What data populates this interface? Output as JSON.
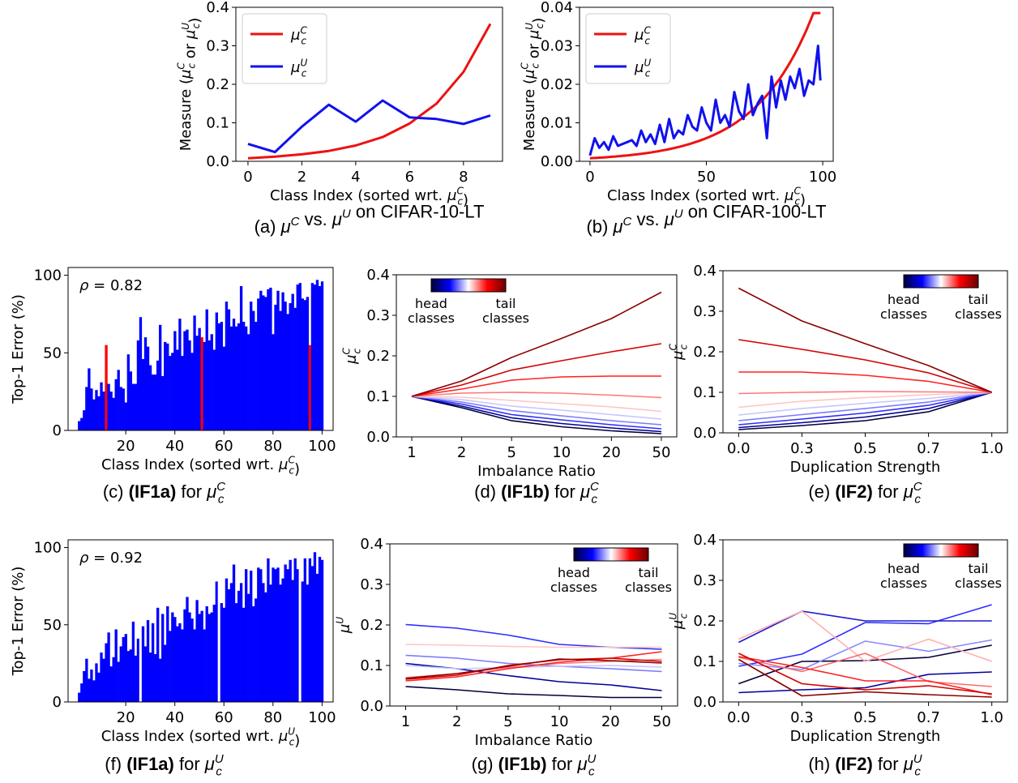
{
  "colors": {
    "red": "#ee1111",
    "blue": "#1111ee",
    "bar_blue": "#0000ff",
    "bar_red": "#ff0000"
  },
  "chart_data": [
    {
      "id": "a",
      "type": "line",
      "caption": {
        "prefix": "(a) ",
        "bold": "",
        "suffix": "μ^C vs. μ^U on CIFAR-10-LT"
      },
      "xlabel": "Class Index (sorted wrt. μ_c^C)",
      "ylabel": "Measure (μ_c^C or μ_c^U)",
      "xlim": [
        -0.45,
        9.45
      ],
      "ylim": [
        0,
        0.4
      ],
      "xticks": [
        0,
        2,
        4,
        6,
        8
      ],
      "xticklabels": [
        "0",
        "2",
        "4",
        "6",
        "8"
      ],
      "yticks": [
        0,
        0.1,
        0.2,
        0.3,
        0.4
      ],
      "yticklabels": [
        "0.0",
        "0.1",
        "0.2",
        "0.3",
        "0.4"
      ],
      "legend": {
        "loc": "upper-left",
        "entries": [
          "μ_c^C",
          "μ_c^U"
        ]
      },
      "series": [
        {
          "name": "μ_c^C",
          "color": "#ee1111",
          "x": [
            0,
            1,
            2,
            3,
            4,
            5,
            6,
            7,
            8,
            9
          ],
          "y": [
            0.008,
            0.012,
            0.018,
            0.027,
            0.041,
            0.063,
            0.098,
            0.15,
            0.232,
            0.357
          ]
        },
        {
          "name": "μ_c^U",
          "color": "#1111ee",
          "x": [
            0,
            1,
            2,
            3,
            4,
            5,
            6,
            7,
            8,
            9
          ],
          "y": [
            0.045,
            0.024,
            0.09,
            0.147,
            0.103,
            0.158,
            0.114,
            0.11,
            0.097,
            0.119
          ]
        }
      ]
    },
    {
      "id": "b",
      "type": "line",
      "caption": {
        "prefix": "(b) ",
        "bold": "",
        "suffix": "μ^C vs. μ^U on CIFAR-100-LT"
      },
      "xlabel": "Class Index (sorted wrt. μ_c^C)",
      "ylabel": "Measure (μ_c^C or μ_c^U)",
      "xlim": [
        -4.5,
        104.5
      ],
      "ylim": [
        0,
        0.04
      ],
      "xticks": [
        0,
        50,
        100
      ],
      "xticklabels": [
        "0",
        "50",
        "100"
      ],
      "yticks": [
        0,
        0.01,
        0.02,
        0.03,
        0.04
      ],
      "yticklabels": [
        "0.00",
        "0.01",
        "0.02",
        "0.03",
        "0.04"
      ],
      "legend": {
        "loc": "upper-left",
        "entries": [
          "μ_c^C",
          "μ_c^U"
        ]
      },
      "series": [
        {
          "name": "μ_c^C",
          "color": "#ee1111",
          "gen": "expcurve",
          "n": 100,
          "y0": 0.0008,
          "y1": 0.0385,
          "flat_from": 96
        },
        {
          "name": "μ_c^U",
          "color": "#1111ee",
          "x": [
            0,
            2,
            4,
            6,
            8,
            10,
            12,
            14,
            16,
            18,
            20,
            22,
            24,
            26,
            28,
            30,
            32,
            34,
            36,
            38,
            40,
            42,
            44,
            46,
            48,
            50,
            52,
            54,
            56,
            58,
            60,
            62,
            64,
            66,
            68,
            70,
            72,
            74,
            76,
            78,
            80,
            82,
            84,
            86,
            88,
            90,
            92,
            94,
            96,
            98,
            99
          ],
          "y": [
            0.0015,
            0.006,
            0.0035,
            0.005,
            0.003,
            0.0065,
            0.004,
            0.0045,
            0.005,
            0.0055,
            0.004,
            0.008,
            0.005,
            0.007,
            0.0045,
            0.0095,
            0.005,
            0.011,
            0.006,
            0.008,
            0.007,
            0.012,
            0.009,
            0.008,
            0.014,
            0.01,
            0.008,
            0.016,
            0.01,
            0.012,
            0.009,
            0.018,
            0.013,
            0.011,
            0.02,
            0.012,
            0.015,
            0.017,
            0.006,
            0.022,
            0.014,
            0.021,
            0.016,
            0.022,
            0.019,
            0.024,
            0.017,
            0.021,
            0.02,
            0.03,
            0.021
          ]
        }
      ]
    },
    {
      "id": "c",
      "type": "bar",
      "caption": {
        "prefix": "(c) ",
        "bold": "(IF1a)",
        "suffix": " for μ_c^C"
      },
      "xlabel": "Class Index (sorted wrt. μ_c^C)",
      "ylabel": "Top-1 Error (%)",
      "xlim": [
        -3.5,
        104.5
      ],
      "ylim": [
        0,
        105
      ],
      "xticks": [
        20,
        40,
        60,
        80,
        100
      ],
      "xticklabels": [
        "20",
        "40",
        "60",
        "80",
        "100"
      ],
      "yticks": [
        0,
        50,
        100
      ],
      "yticklabels": [
        "0",
        "50",
        "100"
      ],
      "annotation": "ρ = 0.82",
      "highlight_color": "#ff0000",
      "highlight_indices": [
        11,
        50,
        94
      ],
      "values": [
        6,
        8,
        13,
        28,
        40,
        27,
        20,
        26,
        22,
        31,
        25,
        55,
        30,
        25,
        21,
        33,
        39,
        28,
        27,
        18,
        49,
        38,
        30,
        30,
        58,
        73,
        46,
        60,
        54,
        42,
        36,
        36,
        45,
        68,
        35,
        57,
        56,
        48,
        50,
        64,
        52,
        72,
        48,
        64,
        65,
        58,
        50,
        74,
        61,
        66,
        60,
        57,
        78,
        58,
        62,
        52,
        76,
        69,
        70,
        54,
        83,
        78,
        67,
        72,
        67,
        69,
        93,
        70,
        67,
        62,
        83,
        77,
        70,
        85,
        90,
        87,
        86,
        91,
        92,
        62,
        81,
        90,
        77,
        89,
        83,
        75,
        82,
        88,
        79,
        94,
        95,
        85,
        84,
        86,
        55,
        95,
        94,
        97,
        93,
        96
      ]
    },
    {
      "id": "d",
      "type": "line",
      "caption": {
        "prefix": "(d) ",
        "bold": "(IF1b)",
        "suffix": " for μ_c^C"
      },
      "xlabel": "Imbalance Ratio",
      "ylabel": "μ_c^C",
      "xcats": [
        "1",
        "2",
        "5",
        "10",
        "20",
        "50"
      ],
      "ylim": [
        0,
        0.4
      ],
      "yticks": [
        0,
        0.1,
        0.2,
        0.3,
        0.4
      ],
      "yticklabels": [
        "0.0",
        "0.1",
        "0.2",
        "0.3",
        "0.4"
      ],
      "colorbar": {
        "loc": "top-left",
        "left_label": [
          "head",
          "classes"
        ],
        "right_label": [
          "tail",
          "classes"
        ]
      },
      "series": [
        {
          "color": "#00003a",
          "y": [
            0.1,
            0.072,
            0.04,
            0.025,
            0.015,
            0.008
          ]
        },
        {
          "color": "#00009a",
          "y": [
            0.1,
            0.076,
            0.047,
            0.033,
            0.022,
            0.013
          ]
        },
        {
          "color": "#2e2eff",
          "y": [
            0.1,
            0.081,
            0.055,
            0.042,
            0.03,
            0.02
          ]
        },
        {
          "color": "#7a7aff",
          "y": [
            0.1,
            0.086,
            0.065,
            0.052,
            0.04,
            0.03
          ]
        },
        {
          "color": "#c6c6ff",
          "y": [
            0.1,
            0.092,
            0.076,
            0.066,
            0.055,
            0.044
          ]
        },
        {
          "color": "#ffc4c4",
          "y": [
            0.1,
            0.098,
            0.09,
            0.082,
            0.074,
            0.063
          ]
        },
        {
          "color": "#ff7777",
          "y": [
            0.1,
            0.108,
            0.11,
            0.108,
            0.103,
            0.097
          ]
        },
        {
          "color": "#ff2222",
          "y": [
            0.1,
            0.118,
            0.14,
            0.148,
            0.15,
            0.15
          ]
        },
        {
          "color": "#d40000",
          "y": [
            0.1,
            0.128,
            0.165,
            0.188,
            0.21,
            0.23
          ]
        },
        {
          "color": "#8b0000",
          "y": [
            0.1,
            0.138,
            0.196,
            0.243,
            0.292,
            0.357
          ]
        }
      ]
    },
    {
      "id": "e",
      "type": "line",
      "caption": {
        "prefix": "(e) ",
        "bold": "(IF2)",
        "suffix": " for μ_c^C"
      },
      "xlabel": "Duplication Strength",
      "ylabel": "μ_c^C",
      "xcats": [
        "0.0",
        "0.3",
        "0.5",
        "0.7",
        "1.0"
      ],
      "ylim": [
        0,
        0.4
      ],
      "yticks": [
        0,
        0.1,
        0.2,
        0.3,
        0.4
      ],
      "yticklabels": [
        "0.0",
        "0.1",
        "0.2",
        "0.3",
        "0.4"
      ],
      "colorbar": {
        "loc": "top-right",
        "left_label": [
          "head",
          "classes"
        ],
        "right_label": [
          "tail",
          "classes"
        ]
      },
      "series": [
        {
          "color": "#00003a",
          "y": [
            0.008,
            0.018,
            0.03,
            0.052,
            0.1
          ]
        },
        {
          "color": "#00009a",
          "y": [
            0.013,
            0.025,
            0.039,
            0.06,
            0.1
          ]
        },
        {
          "color": "#2e2eff",
          "y": [
            0.02,
            0.034,
            0.049,
            0.068,
            0.1
          ]
        },
        {
          "color": "#7a7aff",
          "y": [
            0.03,
            0.045,
            0.06,
            0.076,
            0.1
          ]
        },
        {
          "color": "#c6c6ff",
          "y": [
            0.044,
            0.06,
            0.073,
            0.085,
            0.1
          ]
        },
        {
          "color": "#ffc4c4",
          "y": [
            0.063,
            0.078,
            0.087,
            0.094,
            0.1
          ]
        },
        {
          "color": "#ff7777",
          "y": [
            0.097,
            0.1,
            0.102,
            0.101,
            0.1
          ]
        },
        {
          "color": "#ff2222",
          "y": [
            0.15,
            0.15,
            0.142,
            0.127,
            0.1
          ]
        },
        {
          "color": "#d40000",
          "y": [
            0.23,
            0.206,
            0.18,
            0.148,
            0.1
          ]
        },
        {
          "color": "#8b0000",
          "y": [
            0.357,
            0.276,
            0.22,
            0.166,
            0.1
          ]
        }
      ]
    },
    {
      "id": "f",
      "type": "bar",
      "caption": {
        "prefix": "(f) ",
        "bold": "(IF1a)",
        "suffix": " for μ_c^U"
      },
      "xlabel": "Class Index (sorted wrt. μ_c^U)",
      "ylabel": "Top-1 Error (%)",
      "xlim": [
        -3.5,
        104.5
      ],
      "ylim": [
        0,
        105
      ],
      "xticks": [
        20,
        40,
        60,
        80,
        100
      ],
      "xticklabels": [
        "20",
        "40",
        "60",
        "80",
        "100"
      ],
      "yticks": [
        0,
        50,
        100
      ],
      "yticklabels": [
        "0",
        "50",
        "100"
      ],
      "annotation": "ρ = 0.92",
      "highlight_color": "#ffffff",
      "highlight_indices": [
        25,
        57,
        90
      ],
      "values": [
        6,
        12,
        20,
        28,
        15,
        21,
        14,
        25,
        19,
        32,
        28,
        38,
        45,
        23,
        29,
        47,
        26,
        36,
        42,
        44,
        33,
        34,
        52,
        30,
        41,
        0,
        49,
        36,
        53,
        32,
        51,
        31,
        61,
        28,
        57,
        37,
        62,
        46,
        58,
        55,
        49,
        51,
        47,
        60,
        68,
        58,
        54,
        47,
        66,
        57,
        59,
        47,
        62,
        57,
        58,
        63,
        78,
        0,
        64,
        61,
        80,
        73,
        77,
        89,
        64,
        72,
        77,
        61,
        86,
        70,
        85,
        62,
        67,
        87,
        86,
        77,
        71,
        93,
        76,
        87,
        86,
        87,
        76,
        80,
        89,
        86,
        92,
        79,
        93,
        86,
        0,
        78,
        93,
        76,
        93,
        88,
        97,
        83,
        94,
        92
      ]
    },
    {
      "id": "g",
      "type": "line",
      "caption": {
        "prefix": "(g) ",
        "bold": "(IF1b)",
        "suffix": " for μ_c^U"
      },
      "xlabel": "Imbalance Ratio",
      "ylabel": "μ^U",
      "xcats": [
        "1",
        "2",
        "5",
        "10",
        "20",
        "50"
      ],
      "ylim": [
        0,
        0.4
      ],
      "yticks": [
        0,
        0.1,
        0.2,
        0.3,
        0.4
      ],
      "yticklabels": [
        "0.0",
        "0.1",
        "0.2",
        "0.3",
        "0.4"
      ],
      "colorbar": {
        "loc": "top-right",
        "left_label": [
          "head",
          "classes"
        ],
        "right_label": [
          "tail",
          "classes"
        ]
      },
      "series": [
        {
          "color": "#00003a",
          "y": [
            0.048,
            0.04,
            0.03,
            0.026,
            0.021,
            0.021
          ]
        },
        {
          "color": "#00009a",
          "y": [
            0.105,
            0.092,
            0.075,
            0.06,
            0.052,
            0.038
          ]
        },
        {
          "color": "#2e2eff",
          "y": [
            0.201,
            0.192,
            0.175,
            0.152,
            0.145,
            0.14
          ]
        },
        {
          "color": "#7a7aff",
          "y": [
            0.125,
            0.118,
            0.105,
            0.098,
            0.092,
            0.085
          ]
        },
        {
          "color": "#c6c6ff",
          "y": [
            0.1,
            0.092,
            0.095,
            0.098,
            0.1,
            0.096
          ]
        },
        {
          "color": "#ffc4c4",
          "y": [
            0.152,
            0.15,
            0.147,
            0.145,
            0.145,
            0.145
          ]
        },
        {
          "color": "#ff7777",
          "y": [
            0.07,
            0.08,
            0.095,
            0.105,
            0.11,
            0.115
          ]
        },
        {
          "color": "#ff2222",
          "y": [
            0.062,
            0.072,
            0.092,
            0.108,
            0.118,
            0.134
          ]
        },
        {
          "color": "#d40000",
          "y": [
            0.066,
            0.076,
            0.1,
            0.114,
            0.118,
            0.11
          ]
        },
        {
          "color": "#8b0000",
          "y": [
            0.068,
            0.08,
            0.098,
            0.116,
            0.112,
            0.106
          ]
        }
      ]
    },
    {
      "id": "h",
      "type": "line",
      "caption": {
        "prefix": "(h) ",
        "bold": "(IF2)",
        "suffix": " for μ_c^U"
      },
      "xlabel": "Duplication Strength",
      "ylabel": "μ_c^U",
      "xcats": [
        "0.0",
        "0.3",
        "0.5",
        "0.7",
        "1.0"
      ],
      "ylim": [
        0,
        0.4
      ],
      "yticks": [
        0,
        0.1,
        0.2,
        0.3,
        0.4
      ],
      "yticklabels": [
        "0.0",
        "0.1",
        "0.2",
        "0.3",
        "0.4"
      ],
      "colorbar": {
        "loc": "top-right",
        "left_label": [
          "head",
          "classes"
        ],
        "right_label": [
          "tail",
          "classes"
        ]
      },
      "series": [
        {
          "color": "#00003a",
          "y": [
            0.045,
            0.1,
            0.102,
            0.11,
            0.14
          ]
        },
        {
          "color": "#00009a",
          "y": [
            0.023,
            0.03,
            0.035,
            0.068,
            0.074
          ]
        },
        {
          "color": "#2e2eff",
          "y": [
            0.088,
            0.118,
            0.196,
            0.193,
            0.24
          ]
        },
        {
          "color": "#1a1acc",
          "y": [
            0.147,
            0.224,
            0.2,
            0.2,
            0.2
          ]
        },
        {
          "color": "#8a8aff",
          "y": [
            0.095,
            0.08,
            0.15,
            0.125,
            0.153
          ]
        },
        {
          "color": "#ffb0b0",
          "y": [
            0.155,
            0.224,
            0.1,
            0.155,
            0.1
          ]
        },
        {
          "color": "#ff6a6a",
          "y": [
            0.11,
            0.075,
            0.12,
            0.05,
            0.038
          ]
        },
        {
          "color": "#ff2222",
          "y": [
            0.112,
            0.085,
            0.052,
            0.052,
            0.018
          ]
        },
        {
          "color": "#d40000",
          "y": [
            0.12,
            0.045,
            0.03,
            0.04,
            0.02
          ]
        },
        {
          "color": "#8b0000",
          "y": [
            0.105,
            0.015,
            0.025,
            0.018,
            0.012
          ]
        }
      ]
    }
  ]
}
